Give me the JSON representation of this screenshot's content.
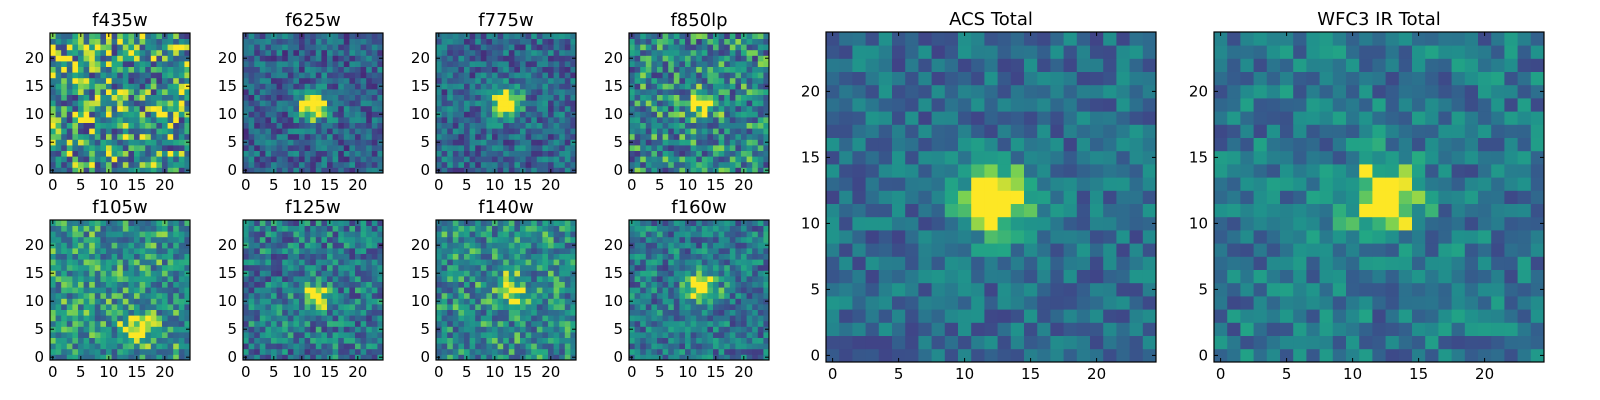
{
  "figure": {
    "description_free": true
  },
  "chart_data": [
    {
      "type": "heatmap",
      "title": "f435w",
      "grid": [
        25,
        25
      ],
      "xticks": [
        "0",
        "5",
        "10",
        "15",
        "20"
      ],
      "yticks": [
        "0",
        "5",
        "10",
        "15",
        "20"
      ],
      "colormap": "viridis",
      "source": {
        "x": 12,
        "y": 12,
        "strength": 0.05
      },
      "noise": 0.85,
      "base": 0.62,
      "seed": 11,
      "xlim": [
        -0.5,
        24.5
      ],
      "ylim": [
        -0.5,
        24.5
      ]
    },
    {
      "type": "heatmap",
      "title": "f625w",
      "grid": [
        25,
        25
      ],
      "xticks": [
        "0",
        "5",
        "10",
        "15",
        "20"
      ],
      "yticks": [
        "0",
        "5",
        "10",
        "15",
        "20"
      ],
      "colormap": "viridis",
      "source": {
        "x": 12,
        "y": 11.5,
        "strength": 0.55
      },
      "noise": 0.5,
      "base": 0.4,
      "seed": 23,
      "xlim": [
        -0.5,
        24.5
      ],
      "ylim": [
        -0.5,
        24.5
      ]
    },
    {
      "type": "heatmap",
      "title": "f775w",
      "grid": [
        25,
        25
      ],
      "xticks": [
        "0",
        "5",
        "10",
        "15",
        "20"
      ],
      "yticks": [
        "0",
        "5",
        "10",
        "15",
        "20"
      ],
      "colormap": "viridis",
      "source": {
        "x": 12,
        "y": 12,
        "strength": 0.55
      },
      "noise": 0.5,
      "base": 0.42,
      "seed": 37,
      "xlim": [
        -0.5,
        24.5
      ],
      "ylim": [
        -0.5,
        24.5
      ]
    },
    {
      "type": "heatmap",
      "title": "f850lp",
      "grid": [
        25,
        25
      ],
      "xticks": [
        "0",
        "5",
        "10",
        "15",
        "20"
      ],
      "yticks": [
        "0",
        "5",
        "10",
        "15",
        "20"
      ],
      "colormap": "viridis",
      "source": {
        "x": 12.5,
        "y": 12,
        "strength": 0.3
      },
      "noise": 0.7,
      "base": 0.55,
      "seed": 41,
      "xlim": [
        -0.5,
        24.5
      ],
      "ylim": [
        -0.5,
        24.5
      ]
    },
    {
      "type": "heatmap",
      "title": "f105w",
      "grid": [
        25,
        25
      ],
      "xticks": [
        "0",
        "5",
        "10",
        "15",
        "20"
      ],
      "yticks": [
        "0",
        "5",
        "10",
        "15",
        "20"
      ],
      "colormap": "viridis",
      "source": {
        "x": 15,
        "y": 5,
        "strength": 0.25
      },
      "noise": 0.6,
      "base": 0.62,
      "seed": 53,
      "xlim": [
        -0.5,
        24.5
      ],
      "ylim": [
        -0.5,
        24.5
      ]
    },
    {
      "type": "heatmap",
      "title": "f125w",
      "grid": [
        25,
        25
      ],
      "xticks": [
        "0",
        "5",
        "10",
        "15",
        "20"
      ],
      "yticks": [
        "0",
        "5",
        "10",
        "15",
        "20"
      ],
      "colormap": "viridis",
      "source": {
        "x": 12.5,
        "y": 11,
        "strength": 0.3
      },
      "noise": 0.6,
      "base": 0.5,
      "seed": 67,
      "xlim": [
        -0.5,
        24.5
      ],
      "ylim": [
        -0.5,
        24.5
      ]
    },
    {
      "type": "heatmap",
      "title": "f140w",
      "grid": [
        25,
        25
      ],
      "xticks": [
        "0",
        "5",
        "10",
        "15",
        "20"
      ],
      "yticks": [
        "0",
        "5",
        "10",
        "15",
        "20"
      ],
      "colormap": "viridis",
      "source": {
        "x": 13,
        "y": 12,
        "strength": 0.3
      },
      "noise": 0.6,
      "base": 0.58,
      "seed": 79,
      "xlim": [
        -0.5,
        24.5
      ],
      "ylim": [
        -0.5,
        24.5
      ]
    },
    {
      "type": "heatmap",
      "title": "f160w",
      "grid": [
        25,
        25
      ],
      "xticks": [
        "0",
        "5",
        "10",
        "15",
        "20"
      ],
      "yticks": [
        "0",
        "5",
        "10",
        "15",
        "20"
      ],
      "colormap": "viridis",
      "source": {
        "x": 12.5,
        "y": 12.5,
        "strength": 0.5
      },
      "noise": 0.55,
      "base": 0.5,
      "seed": 83,
      "xlim": [
        -0.5,
        24.5
      ],
      "ylim": [
        -0.5,
        24.5
      ]
    },
    {
      "type": "heatmap",
      "title": "ACS Total",
      "grid": [
        25,
        25
      ],
      "xticks": [
        "0",
        "5",
        "10",
        "15",
        "20"
      ],
      "yticks": [
        "0",
        "5",
        "10",
        "15",
        "20"
      ],
      "colormap": "viridis",
      "source": {
        "x": 12.3,
        "y": 11.8,
        "strength": 0.55
      },
      "noise": 0.4,
      "base": 0.45,
      "seed": 97,
      "xlim": [
        -0.5,
        24.5
      ],
      "ylim": [
        -0.5,
        24.5
      ]
    },
    {
      "type": "heatmap",
      "title": "WFC3 IR Total",
      "grid": [
        25,
        25
      ],
      "xticks": [
        "0",
        "5",
        "10",
        "15",
        "20"
      ],
      "yticks": [
        "0",
        "5",
        "10",
        "15",
        "20"
      ],
      "colormap": "viridis",
      "source": {
        "x": 12.5,
        "y": 12,
        "strength": 0.5
      },
      "noise": 0.45,
      "base": 0.5,
      "seed": 101,
      "xlim": [
        -0.5,
        24.5
      ],
      "ylim": [
        -0.5,
        24.5
      ]
    }
  ]
}
